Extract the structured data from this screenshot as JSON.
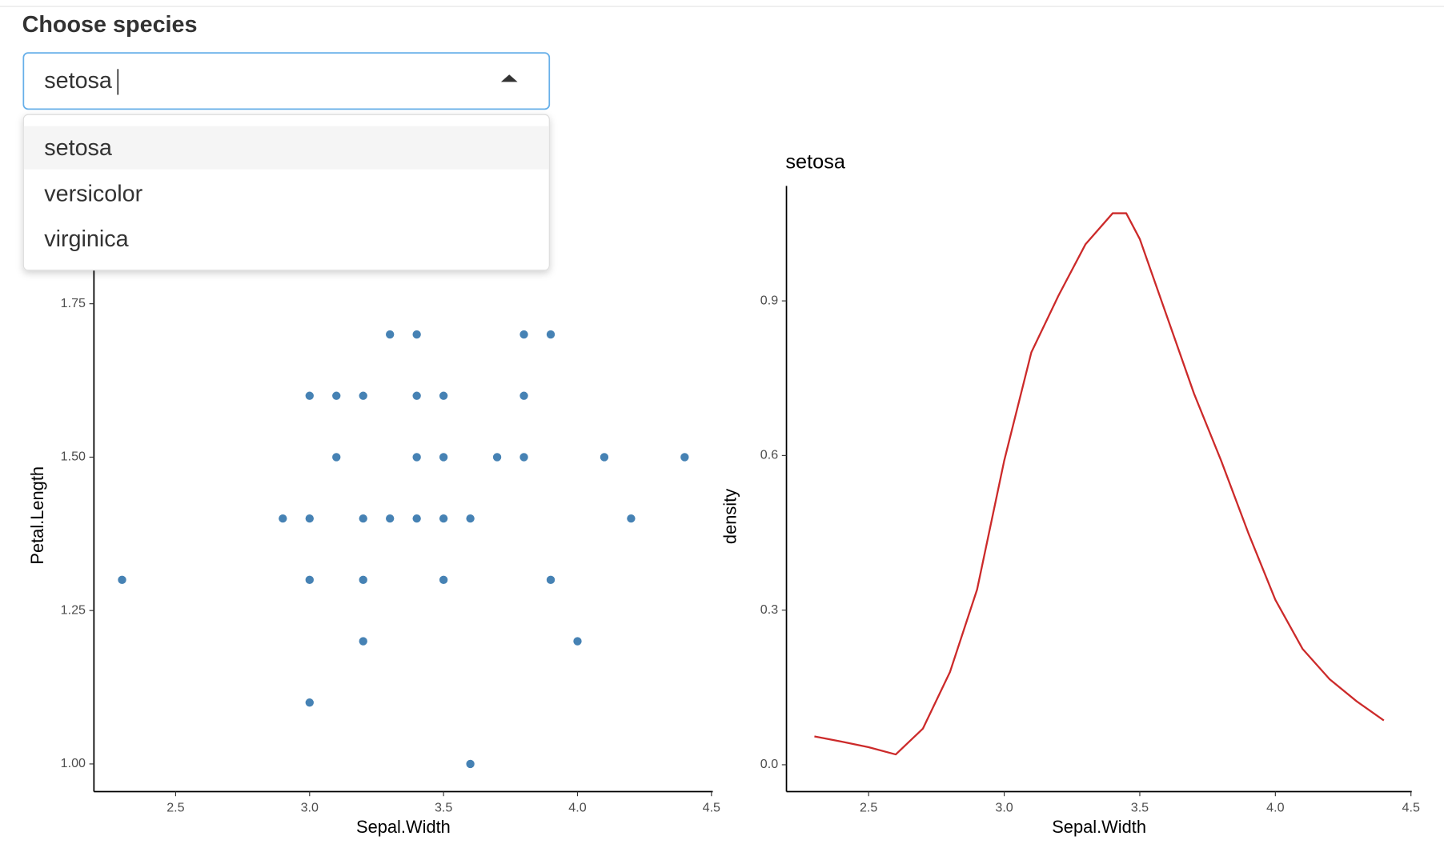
{
  "ui": {
    "label": "Choose species",
    "selected": "setosa",
    "options": [
      "setosa",
      "versicolor",
      "virginica"
    ]
  },
  "chart_data": [
    {
      "type": "scatter",
      "x_label": "Sepal.Width",
      "y_label": "Petal.Length",
      "color": "#4682b4",
      "x": [
        2.3,
        3.3,
        3.4,
        3.8,
        3.9,
        3.0,
        3.1,
        3.2,
        3.4,
        3.5,
        3.8,
        3.1,
        3.4,
        3.5,
        3.7,
        3.8,
        4.1,
        4.4,
        2.9,
        3.0,
        3.2,
        3.3,
        3.4,
        3.5,
        3.6,
        4.2,
        3.0,
        3.2,
        3.5,
        3.9,
        3.2,
        4.0,
        3.0,
        3.6
      ],
      "values": [
        1.3,
        1.7,
        1.7,
        1.7,
        1.7,
        1.6,
        1.6,
        1.6,
        1.6,
        1.6,
        1.6,
        1.5,
        1.5,
        1.5,
        1.5,
        1.5,
        1.5,
        1.5,
        1.4,
        1.4,
        1.4,
        1.4,
        1.4,
        1.4,
        1.4,
        1.4,
        1.3,
        1.3,
        1.3,
        1.3,
        1.2,
        1.2,
        1.1,
        1.0
      ],
      "xlim": [
        2.195,
        4.505
      ],
      "ylim": [
        0.955,
        1.945
      ],
      "xticks": [
        2.5,
        {
          "value": 3,
          "label": "3.0"
        },
        3.5,
        {
          "value": 4,
          "label": "4.0"
        },
        4.5
      ],
      "yticks": [
        {
          "value": 1,
          "label": "1.00"
        },
        1.25,
        {
          "value": 1.5,
          "label": "1.50"
        },
        1.75
      ]
    },
    {
      "type": "line",
      "title": "setosa",
      "x_label": "Sepal.Width",
      "y_label": "density",
      "color": "#cc2a2a",
      "x": [
        2.3,
        2.4,
        2.5,
        2.6,
        2.7,
        2.8,
        2.9,
        3.0,
        3.1,
        3.2,
        3.3,
        3.4,
        3.45,
        3.5,
        3.6,
        3.7,
        3.8,
        3.9,
        4.0,
        4.1,
        4.2,
        4.3,
        4.4
      ],
      "values": [
        0.055,
        0.045,
        0.034,
        0.02,
        0.07,
        0.18,
        0.34,
        0.59,
        0.8,
        0.91,
        1.01,
        1.07,
        1.07,
        1.02,
        0.87,
        0.72,
        0.59,
        0.45,
        0.32,
        0.225,
        0.166,
        0.123,
        0.086
      ],
      "xlim": [
        2.197,
        4.503
      ],
      "ylim": [
        -0.052,
        1.123
      ],
      "xticks": [
        2.5,
        {
          "value": 3,
          "label": "3.0"
        },
        3.5,
        {
          "value": 4,
          "label": "4.0"
        },
        4.5
      ],
      "yticks": [
        {
          "value": 0,
          "label": "0.0"
        },
        0.3,
        0.6,
        0.9
      ]
    }
  ]
}
